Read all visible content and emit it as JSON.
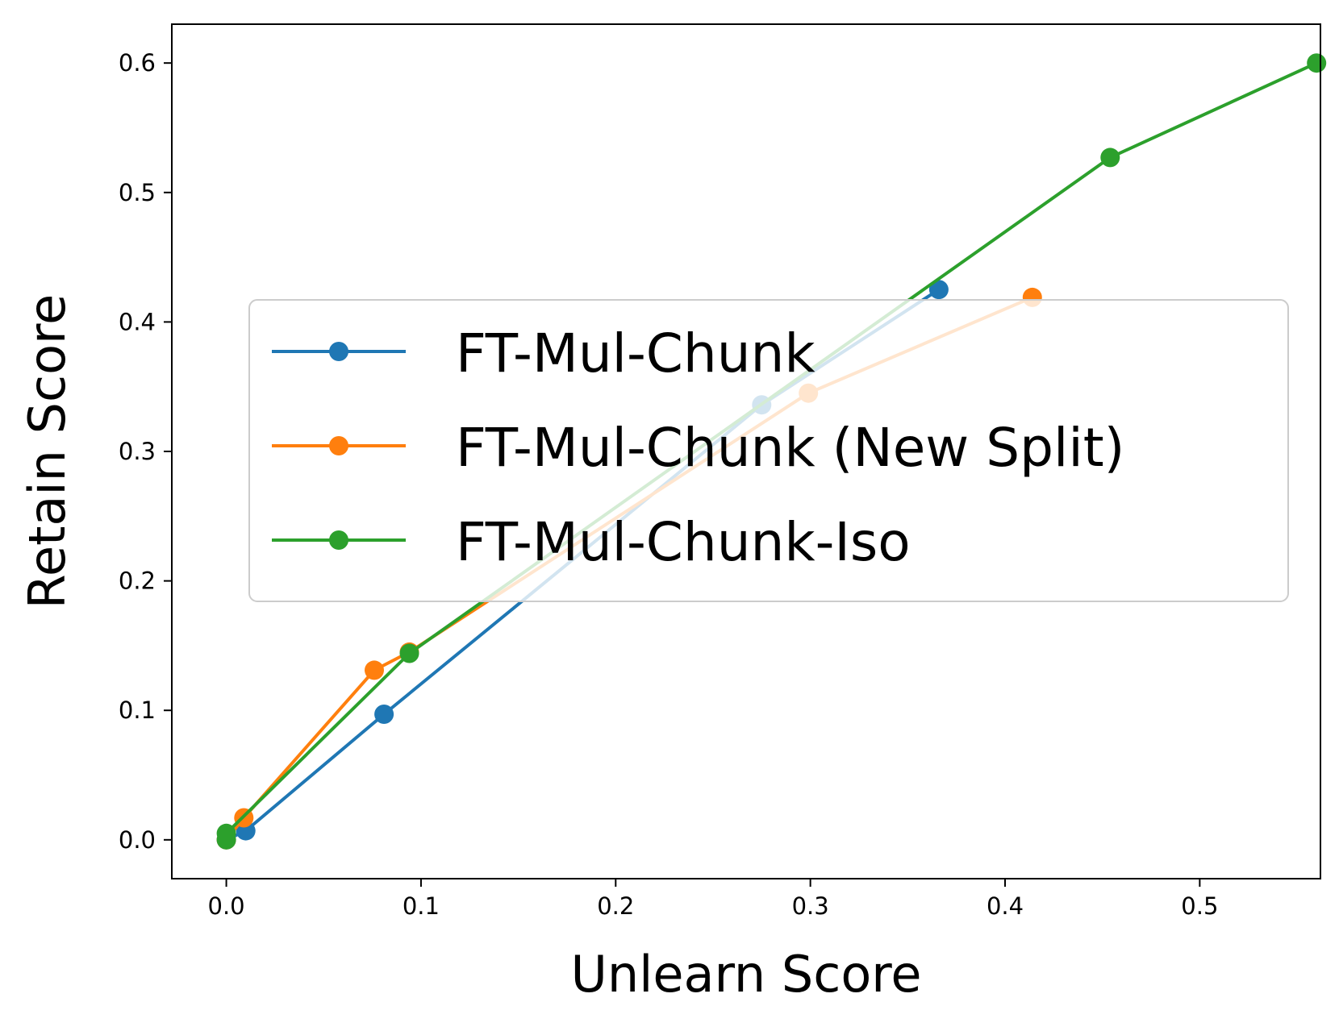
{
  "chart_data": {
    "type": "line",
    "xlabel": "Unlearn Score",
    "ylabel": "Retain Score",
    "xlim": [
      -0.028,
      0.562
    ],
    "ylim": [
      -0.03,
      0.63
    ],
    "xticks": [
      0.0,
      0.1,
      0.2,
      0.3,
      0.4,
      0.5
    ],
    "xtick_labels": [
      "0.0",
      "0.1",
      "0.2",
      "0.3",
      "0.4",
      "0.5"
    ],
    "yticks": [
      0.0,
      0.1,
      0.2,
      0.3,
      0.4,
      0.5,
      0.6
    ],
    "ytick_labels": [
      "0.0",
      "0.1",
      "0.2",
      "0.3",
      "0.4",
      "0.5",
      "0.6"
    ],
    "grid": false,
    "legend_position": "center-right",
    "series": [
      {
        "name": "FT-Mul-Chunk",
        "color": "#1f77b4",
        "marker": "circle",
        "x": [
          0.0,
          0.01,
          0.081,
          0.275,
          0.366
        ],
        "y": [
          0.0,
          0.007,
          0.097,
          0.336,
          0.425
        ]
      },
      {
        "name": "FT-Mul-Chunk (New Split)",
        "color": "#ff7f0e",
        "marker": "circle",
        "x": [
          0.0,
          0.009,
          0.076,
          0.094,
          0.299,
          0.414
        ],
        "y": [
          0.0,
          0.017,
          0.131,
          0.145,
          0.345,
          0.419
        ]
      },
      {
        "name": "FT-Mul-Chunk-Iso",
        "color": "#2ca02c",
        "marker": "circle",
        "x": [
          0.0,
          0.0,
          0.094,
          0.454,
          0.56
        ],
        "y": [
          0.0,
          0.005,
          0.144,
          0.527,
          0.6
        ]
      }
    ]
  }
}
